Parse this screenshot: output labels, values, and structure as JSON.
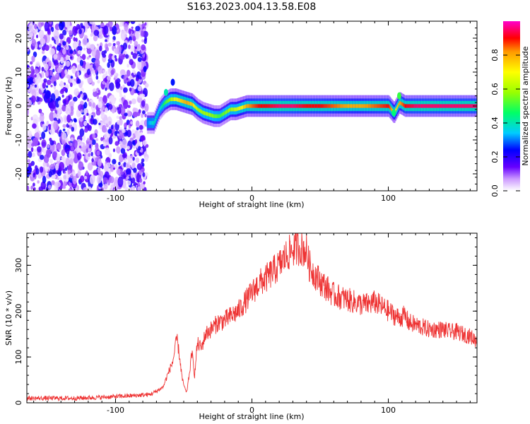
{
  "title": "S163.2023.004.13.58.E08",
  "chart_data": [
    {
      "type": "heatmap",
      "xlabel": "Height of straight line (km)",
      "ylabel": "Frequency (Hz)",
      "xlim": [
        -165,
        165
      ],
      "ylim": [
        -25,
        25
      ],
      "xticks": [
        -100,
        0,
        100
      ],
      "xtick_labels": [
        "-100",
        "0",
        "100"
      ],
      "yticks": [
        -20,
        -10,
        0,
        10,
        20
      ],
      "ytick_labels": [
        "-20",
        "-10",
        "0",
        "10",
        "20"
      ],
      "grid": false,
      "noise_region_x": [
        -165,
        -77
      ],
      "ridge": {
        "x": [
          -77,
          -72,
          -68,
          -64,
          -60,
          -56,
          -52,
          -48,
          -44,
          -40,
          -36,
          -32,
          -28,
          -24,
          -20,
          -16,
          -12,
          -8,
          -4,
          0,
          5,
          10,
          20,
          30,
          40,
          50,
          60,
          70,
          80,
          90,
          100,
          104,
          108,
          112,
          120,
          130,
          140,
          150,
          165
        ],
        "y": [
          -5,
          -5,
          -1,
          1,
          2,
          2,
          1.5,
          1,
          0.5,
          -1,
          -2,
          -2.5,
          -3,
          -3,
          -2,
          -1,
          -1,
          -0.5,
          0,
          0,
          0,
          0,
          0,
          0,
          0,
          0,
          0,
          0,
          0,
          0,
          0,
          -2,
          1,
          0,
          0,
          0,
          0,
          0,
          0
        ],
        "amplitude": [
          0.3,
          0.4,
          0.35,
          0.5,
          0.6,
          0.7,
          0.75,
          0.8,
          0.75,
          0.6,
          0.6,
          0.6,
          0.55,
          0.5,
          0.55,
          0.6,
          0.65,
          0.7,
          0.8,
          0.85,
          0.9,
          0.9,
          0.95,
          0.95,
          0.9,
          0.9,
          0.85,
          0.8,
          0.8,
          0.85,
          0.9,
          0.7,
          0.8,
          0.9,
          0.95,
          0.95,
          0.95,
          0.95,
          0.95
        ]
      },
      "colorbar": {
        "label": "Normalized spectral amplitude",
        "range": [
          0,
          1
        ],
        "ticks": [
          0.0,
          0.2,
          0.4,
          0.6,
          0.8
        ],
        "tick_labels": [
          "0.0",
          "0.2",
          "0.4",
          "0.6",
          "0.8"
        ],
        "colormap": [
          "#ffffff",
          "#cc99ff",
          "#6600ff",
          "#0000ff",
          "#00ccff",
          "#00ff66",
          "#99ff00",
          "#ffff00",
          "#ff9900",
          "#ff0000",
          "#ff00cc"
        ]
      }
    },
    {
      "type": "line",
      "xlabel": "Height of straight line (km)",
      "ylabel": "SNR (10 * v/v)",
      "xlim": [
        -165,
        165
      ],
      "ylim": [
        0,
        370
      ],
      "xticks": [
        -100,
        0,
        100
      ],
      "xtick_labels": [
        "-100",
        "0",
        "100"
      ],
      "yticks": [
        0,
        100,
        200,
        300
      ],
      "ytick_labels": [
        "0",
        "100",
        "200",
        "300"
      ],
      "grid": false,
      "series": [
        {
          "color": "#ee3333",
          "x": [
            -165,
            -150,
            -130,
            -110,
            -90,
            -75,
            -70,
            -65,
            -62,
            -58,
            -55,
            -53,
            -51,
            -48,
            -46,
            -44,
            -42,
            -40,
            -37,
            -34,
            -30,
            -25,
            -20,
            -15,
            -10,
            -5,
            0,
            5,
            10,
            15,
            20,
            25,
            30,
            35,
            40,
            42,
            45,
            50,
            55,
            60,
            65,
            70,
            75,
            80,
            85,
            90,
            95,
            100,
            105,
            108,
            112,
            115,
            120,
            125,
            130,
            135,
            140,
            145,
            150,
            155,
            160,
            165
          ],
          "y": [
            10,
            10,
            10,
            12,
            15,
            18,
            25,
            35,
            60,
            90,
            140,
            100,
            50,
            20,
            60,
            110,
            60,
            130,
            120,
            150,
            160,
            175,
            180,
            190,
            200,
            220,
            240,
            260,
            270,
            285,
            300,
            320,
            335,
            340,
            330,
            300,
            285,
            265,
            250,
            235,
            230,
            225,
            220,
            215,
            215,
            220,
            210,
            200,
            190,
            185,
            190,
            175,
            170,
            165,
            160,
            160,
            160,
            155,
            155,
            150,
            145,
            135
          ]
        }
      ]
    }
  ]
}
